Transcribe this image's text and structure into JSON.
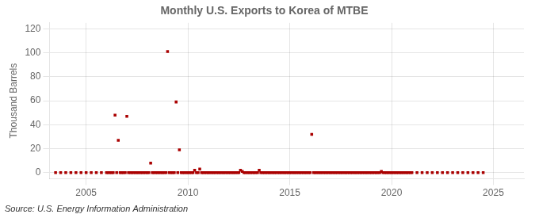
{
  "chart_data": {
    "type": "scatter",
    "title": "Monthly U.S. Exports to Korea of MTBE",
    "ylabel": "Thousand Barrels",
    "annotation": "Source: U.S. Energy Information Administration",
    "color": "#aa0000",
    "marker": "square",
    "grid": true,
    "xlim": [
      2003.2,
      2026.5
    ],
    "ylim": [
      -5,
      125
    ],
    "xticks": [
      2005,
      2010,
      2015,
      2020,
      2025
    ],
    "yticks": [
      0,
      20,
      40,
      60,
      80,
      100,
      120
    ],
    "x": [
      2003.5,
      2003.75,
      2004.0,
      2004.25,
      2004.5,
      2004.75,
      2005.0,
      2005.25,
      2005.5,
      2005.75,
      2006.0,
      2006.08,
      2006.17,
      2006.25,
      2006.33,
      2006.42,
      2006.5,
      2006.58,
      2006.67,
      2006.75,
      2006.83,
      2006.92,
      2007.0,
      2007.08,
      2007.17,
      2007.25,
      2007.33,
      2007.42,
      2007.5,
      2007.58,
      2007.67,
      2007.75,
      2007.83,
      2007.92,
      2008.0,
      2008.08,
      2008.17,
      2008.25,
      2008.33,
      2008.42,
      2008.5,
      2008.58,
      2008.67,
      2008.75,
      2008.83,
      2008.92,
      2009.0,
      2009.08,
      2009.17,
      2009.25,
      2009.33,
      2009.42,
      2009.5,
      2009.58,
      2009.67,
      2009.75,
      2009.83,
      2009.92,
      2010.0,
      2010.08,
      2010.17,
      2010.25,
      2010.33,
      2010.42,
      2010.5,
      2010.58,
      2010.67,
      2010.75,
      2010.83,
      2010.92,
      2011.0,
      2011.08,
      2011.17,
      2011.25,
      2011.33,
      2011.42,
      2011.5,
      2011.58,
      2011.67,
      2011.75,
      2011.83,
      2011.92,
      2012.0,
      2012.08,
      2012.17,
      2012.25,
      2012.33,
      2012.42,
      2012.5,
      2012.58,
      2012.67,
      2012.75,
      2012.83,
      2012.92,
      2013.0,
      2013.08,
      2013.17,
      2013.25,
      2013.33,
      2013.42,
      2013.5,
      2013.58,
      2013.67,
      2013.75,
      2013.83,
      2013.92,
      2014.0,
      2014.08,
      2014.17,
      2014.25,
      2014.33,
      2014.42,
      2014.5,
      2014.58,
      2014.67,
      2014.75,
      2014.83,
      2014.92,
      2015.0,
      2015.08,
      2015.17,
      2015.25,
      2015.33,
      2015.42,
      2015.5,
      2015.58,
      2015.67,
      2015.75,
      2015.83,
      2015.92,
      2016.0,
      2016.08,
      2016.17,
      2016.25,
      2016.33,
      2016.42,
      2016.5,
      2016.58,
      2016.67,
      2016.75,
      2016.83,
      2016.92,
      2017.0,
      2017.08,
      2017.17,
      2017.25,
      2017.33,
      2017.42,
      2017.5,
      2017.58,
      2017.67,
      2017.75,
      2017.83,
      2017.92,
      2018.0,
      2018.08,
      2018.17,
      2018.25,
      2018.33,
      2018.42,
      2018.5,
      2018.58,
      2018.67,
      2018.75,
      2018.83,
      2018.92,
      2019.0,
      2019.08,
      2019.17,
      2019.25,
      2019.33,
      2019.42,
      2019.5,
      2019.58,
      2019.67,
      2019.75,
      2019.83,
      2019.92,
      2020.0,
      2020.08,
      2020.17,
      2020.25,
      2020.33,
      2020.42,
      2020.5,
      2020.58,
      2020.67,
      2020.75,
      2020.83,
      2020.92,
      2021.0,
      2021.25,
      2021.5,
      2021.75,
      2022.0,
      2022.25,
      2022.5,
      2022.75,
      2023.0,
      2023.25,
      2023.5,
      2023.75,
      2024.0,
      2024.25,
      2024.5
    ],
    "values": [
      0,
      0,
      0,
      0,
      0,
      0,
      0,
      0,
      0,
      0,
      0,
      0,
      0,
      0,
      0,
      48,
      0,
      27,
      0,
      0,
      0,
      0,
      47,
      0,
      0,
      0,
      0,
      0,
      0,
      0,
      0,
      0,
      0,
      0,
      0,
      0,
      8,
      0,
      0,
      0,
      0,
      0,
      0,
      0,
      0,
      0,
      101,
      0,
      0,
      0,
      0,
      59,
      0,
      19,
      0,
      0,
      0,
      0,
      0,
      0,
      0,
      0,
      2,
      0,
      0,
      3,
      0,
      0,
      0,
      0,
      0,
      0,
      0,
      0,
      0,
      0,
      0,
      0,
      0,
      0,
      0,
      0,
      0,
      0,
      0,
      0,
      0,
      0,
      0,
      2,
      1,
      0,
      0,
      0,
      0,
      0,
      0,
      0,
      0,
      0,
      2,
      0,
      0,
      0,
      0,
      0,
      0,
      0,
      0,
      0,
      0,
      0,
      0,
      0,
      0,
      0,
      0,
      0,
      0,
      0,
      0,
      0,
      0,
      0,
      0,
      0,
      0,
      0,
      0,
      0,
      0,
      32,
      0,
      0,
      0,
      0,
      0,
      0,
      0,
      0,
      0,
      0,
      0,
      0,
      0,
      0,
      0,
      0,
      0,
      0,
      0,
      0,
      0,
      0,
      0,
      0,
      0,
      0,
      0,
      0,
      0,
      0,
      0,
      0,
      0,
      0,
      0,
      0,
      0,
      0,
      0,
      0,
      1,
      0,
      0,
      0,
      0,
      0,
      0,
      0,
      0,
      0,
      0,
      0,
      0,
      0,
      0,
      0,
      0,
      0,
      0,
      0,
      0,
      0,
      0,
      0,
      0,
      0,
      0,
      0,
      0,
      0,
      0,
      0,
      0
    ]
  }
}
